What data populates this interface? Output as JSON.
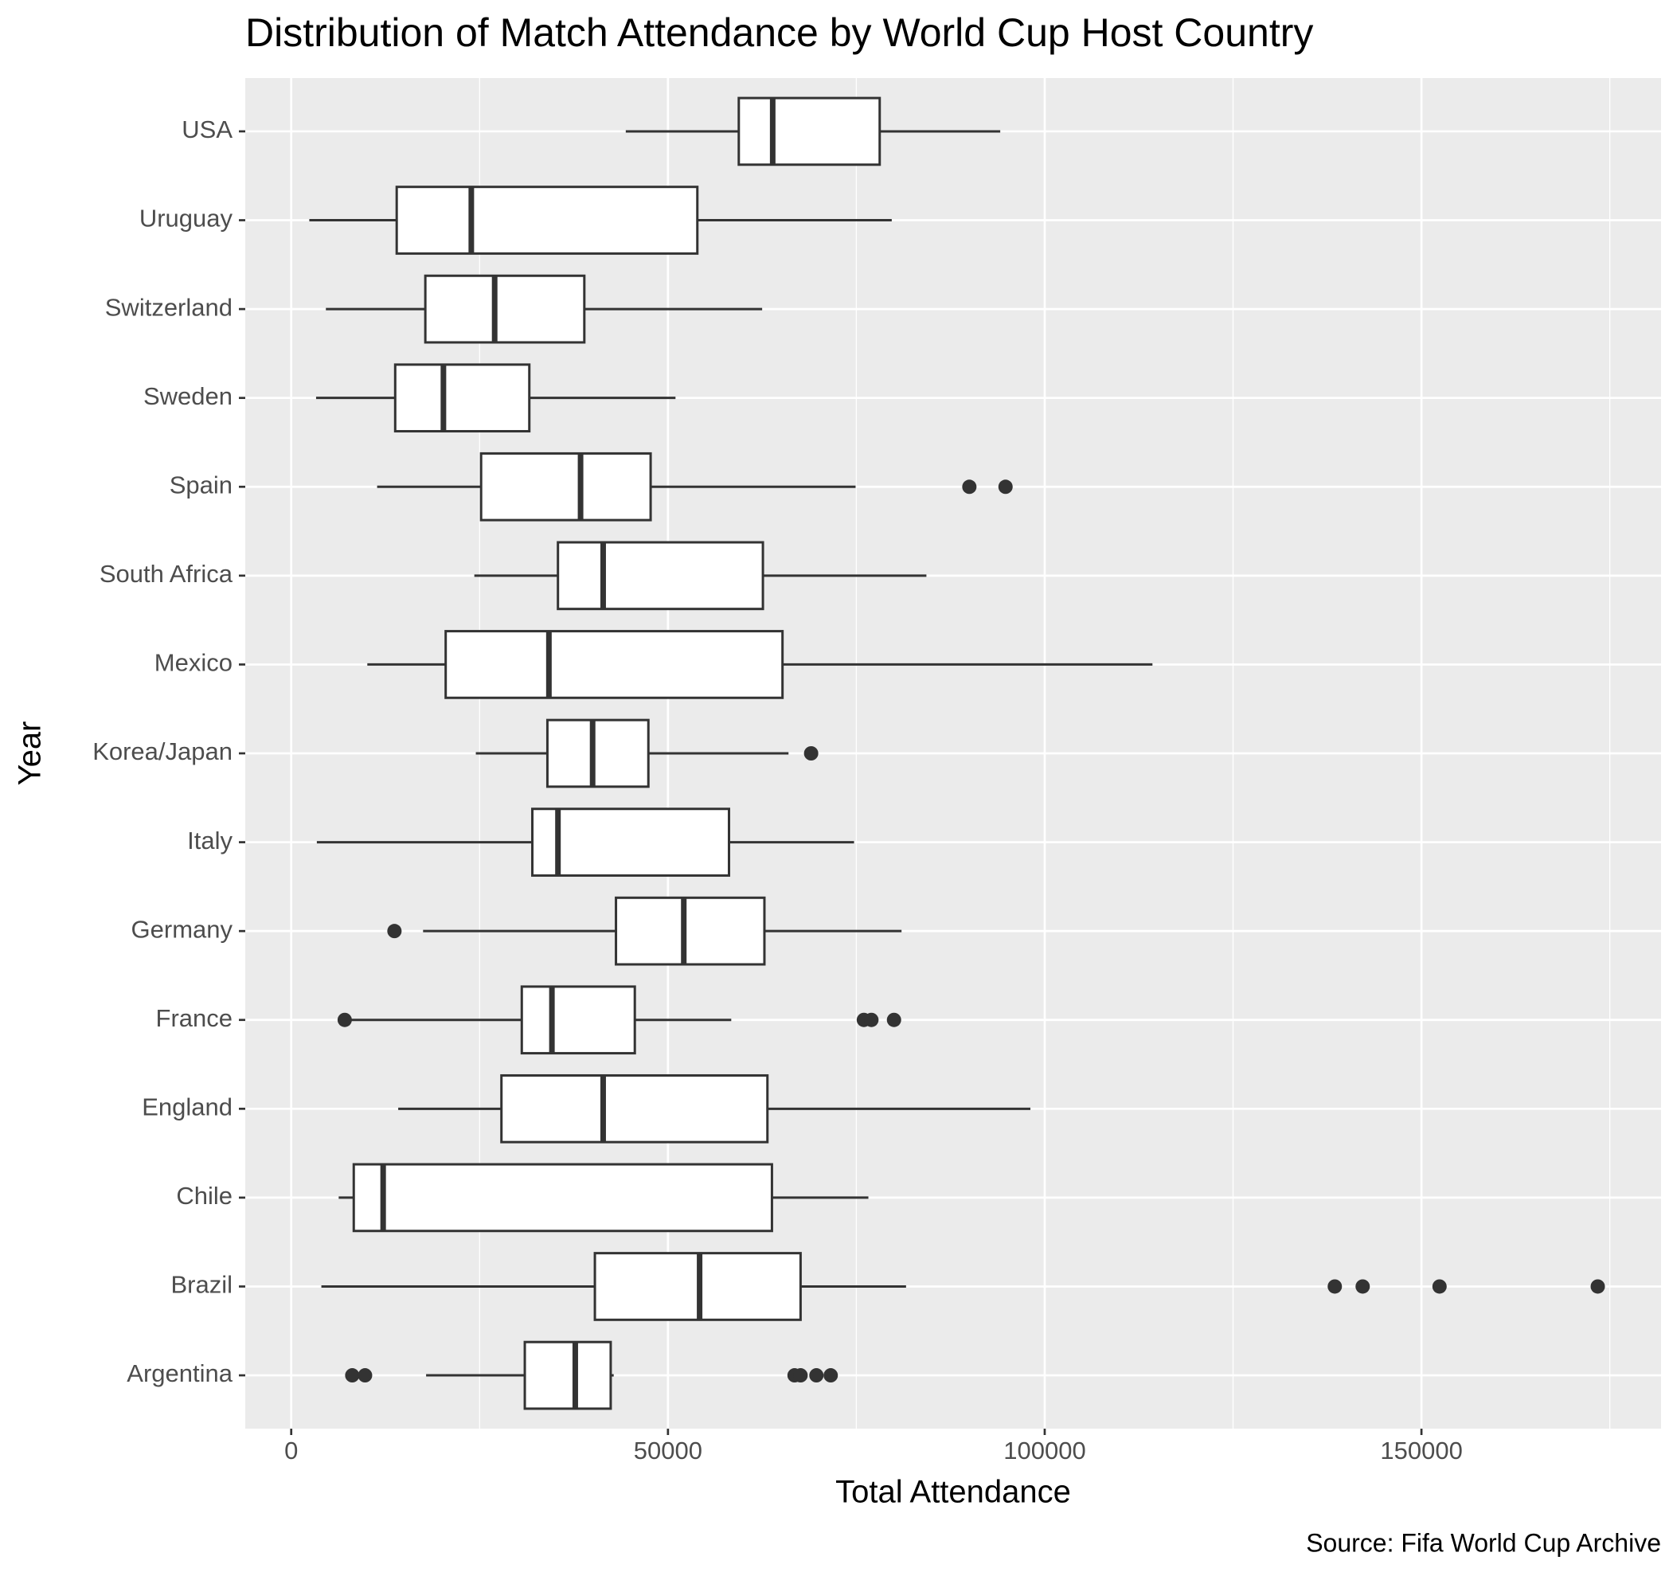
{
  "chart_data": {
    "type": "boxplot",
    "title": "Distribution of Match Attendance by World Cup Host Country",
    "x_label": "Total Attendance",
    "y_label": "Year",
    "caption": "Source: Fifa World Cup Archive",
    "categories": [
      "Argentina",
      "Brazil",
      "Chile",
      "England",
      "France",
      "Germany",
      "Italy",
      "Korea/Japan",
      "Mexico",
      "South Africa",
      "Spain",
      "Sweden",
      "Switzerland",
      "Uruguay",
      "USA"
    ],
    "boxes": [
      {
        "whisker_low": 17900,
        "q1": 31000,
        "median": 37700,
        "q3": 42400,
        "whisker_high": 42800,
        "outliers": [
          8100,
          9800,
          66800,
          67600,
          69700,
          71600
        ]
      },
      {
        "whisker_low": 4000,
        "q1": 40300,
        "median": 54200,
        "q3": 67600,
        "whisker_high": 81600,
        "outliers": [
          138500,
          142200,
          152400,
          173400
        ]
      },
      {
        "whisker_low": 6300,
        "q1": 8300,
        "median": 12200,
        "q3": 63800,
        "whisker_high": 76600,
        "outliers": []
      },
      {
        "whisker_low": 14200,
        "q1": 27900,
        "median": 41400,
        "q3": 63200,
        "whisker_high": 98100,
        "outliers": []
      },
      {
        "whisker_low": 7800,
        "q1": 30600,
        "median": 34600,
        "q3": 45600,
        "whisker_high": 58400,
        "outliers": [
          7100,
          76000,
          77000,
          80000
        ]
      },
      {
        "whisker_low": 17500,
        "q1": 43100,
        "median": 52100,
        "q3": 62800,
        "whisker_high": 81000,
        "outliers": [
          13700
        ]
      },
      {
        "whisker_low": 3400,
        "q1": 32000,
        "median": 35400,
        "q3": 58100,
        "whisker_high": 74700,
        "outliers": []
      },
      {
        "whisker_low": 24500,
        "q1": 34000,
        "median": 40000,
        "q3": 47400,
        "whisker_high": 66000,
        "outliers": [
          69000
        ]
      },
      {
        "whisker_low": 10100,
        "q1": 20500,
        "median": 34200,
        "q3": 65200,
        "whisker_high": 114300,
        "outliers": []
      },
      {
        "whisker_low": 24300,
        "q1": 35400,
        "median": 41400,
        "q3": 62600,
        "whisker_high": 84300,
        "outliers": []
      },
      {
        "whisker_low": 11400,
        "q1": 25200,
        "median": 38400,
        "q3": 47700,
        "whisker_high": 74900,
        "outliers": [
          90000,
          94800
        ]
      },
      {
        "whisker_low": 3300,
        "q1": 13800,
        "median": 20200,
        "q3": 31600,
        "whisker_high": 51000,
        "outliers": []
      },
      {
        "whisker_low": 4600,
        "q1": 17800,
        "median": 27000,
        "q3": 38900,
        "whisker_high": 62500,
        "outliers": []
      },
      {
        "whisker_low": 2400,
        "q1": 14000,
        "median": 23900,
        "q3": 53900,
        "whisker_high": 79700,
        "outliers": []
      },
      {
        "whisker_low": 44400,
        "q1": 59400,
        "median": 63900,
        "q3": 78100,
        "whisker_high": 94100,
        "outliers": []
      }
    ],
    "box_fill": "#ffffff",
    "line_color": "#333333",
    "xlim": [
      -6100,
      181800
    ],
    "xticks": [
      0,
      50000,
      100000,
      150000
    ],
    "minor_xticks": [
      25000,
      75000,
      125000,
      175000
    ],
    "grid": true
  }
}
